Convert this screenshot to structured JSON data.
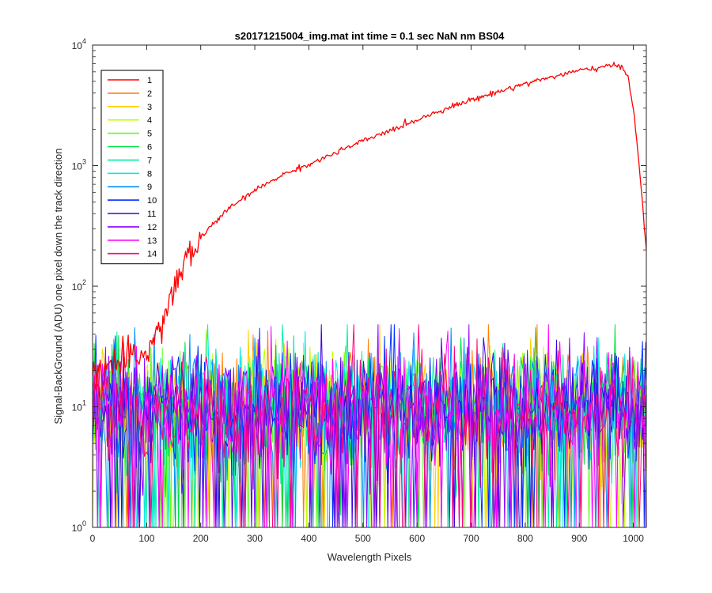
{
  "chart_data": {
    "type": "line",
    "title": "s20171215004_img.mat int time = 0.1 sec  NaN nm BS04",
    "xlabel": "Wavelength Pixels",
    "ylabel": "Signal-BackGround (ADU) one pixel down the track direction",
    "xlim": [
      0,
      1024
    ],
    "ylim": [
      1,
      10000
    ],
    "yscale": "log",
    "grid": false,
    "legend_position": "top-left",
    "x_ticks": [
      "0",
      "100",
      "200",
      "300",
      "400",
      "500",
      "600",
      "700",
      "800",
      "900",
      "1000"
    ],
    "y_ticks": [
      {
        "base": "10",
        "exp": "0"
      },
      {
        "base": "10",
        "exp": "1"
      },
      {
        "base": "10",
        "exp": "2"
      },
      {
        "base": "10",
        "exp": "3"
      },
      {
        "base": "10",
        "exp": "4"
      }
    ],
    "series": [
      {
        "name": "1",
        "color": "#ff0000",
        "x": [
          0,
          80,
          100,
          110,
          120,
          130,
          140,
          150,
          160,
          170,
          180,
          190,
          200,
          220,
          240,
          260,
          280,
          300,
          320,
          340,
          360,
          380,
          400,
          450,
          500,
          550,
          600,
          650,
          700,
          750,
          800,
          850,
          900,
          950,
          970,
          980,
          990,
          1000,
          1010,
          1024
        ],
        "y": [
          20,
          25,
          30,
          32,
          40,
          55,
          70,
          90,
          120,
          150,
          180,
          210,
          250,
          320,
          390,
          470,
          540,
          620,
          700,
          790,
          870,
          950,
          1020,
          1280,
          1600,
          1950,
          2400,
          2950,
          3500,
          4100,
          4800,
          5450,
          6150,
          6600,
          6800,
          6600,
          5500,
          3000,
          1100,
          200
        ]
      },
      {
        "name": "2",
        "color": "#ff8000",
        "noise": true,
        "level": 10
      },
      {
        "name": "3",
        "color": "#ffd000",
        "noise": true,
        "level": 10
      },
      {
        "name": "4",
        "color": "#c0ff00",
        "noise": true,
        "level": 10
      },
      {
        "name": "5",
        "color": "#60ff20",
        "noise": true,
        "level": 10
      },
      {
        "name": "6",
        "color": "#00e040",
        "noise": true,
        "level": 10
      },
      {
        "name": "7",
        "color": "#00f0a0",
        "noise": true,
        "level": 10
      },
      {
        "name": "8",
        "color": "#00e8e8",
        "noise": true,
        "level": 10
      },
      {
        "name": "9",
        "color": "#0090ff",
        "noise": true,
        "level": 10
      },
      {
        "name": "10",
        "color": "#0030ff",
        "noise": true,
        "level": 10
      },
      {
        "name": "11",
        "color": "#4000e0",
        "noise": true,
        "level": 10
      },
      {
        "name": "12",
        "color": "#9000ff",
        "noise": true,
        "level": 10
      },
      {
        "name": "13",
        "color": "#ff00ff",
        "noise": true,
        "level": 10
      },
      {
        "name": "14",
        "color": "#ff0080",
        "noise": true,
        "level": 10
      }
    ]
  }
}
